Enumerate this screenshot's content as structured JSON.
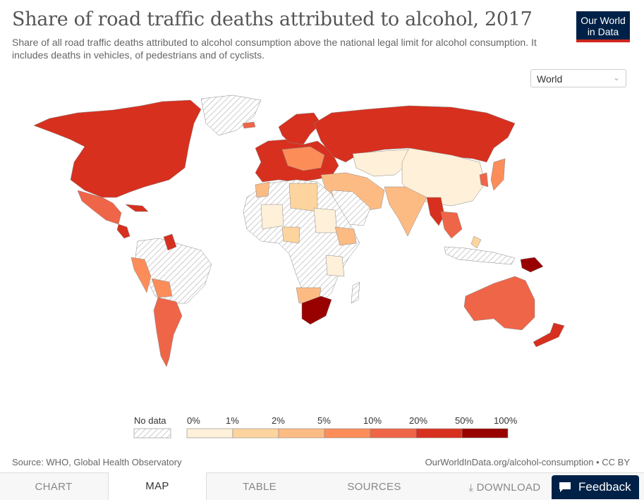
{
  "header": {
    "title": "Share of road traffic deaths attributed to alcohol, 2017",
    "subtitle": "Share of all road traffic deaths attributed to alcohol consumption above the national legal limit for alcohol consumption. It includes deaths in vehicles, of pedestrians and of cyclists.",
    "logo_line1": "Our World",
    "logo_line2": "in Data"
  },
  "region_select": {
    "value": "World"
  },
  "legend": {
    "no_data_label": "No data",
    "ticks": [
      "0%",
      "1%",
      "2%",
      "5%",
      "10%",
      "20%",
      "50%",
      "100%"
    ],
    "colors": [
      "#fef0d9",
      "#fdd49e",
      "#fdbb84",
      "#fc8d59",
      "#ef6548",
      "#d7301f",
      "#990000"
    ]
  },
  "footer": {
    "source": "Source: WHO, Global Health Observatory",
    "url": "OurWorldInData.org/alcohol-consumption • CC BY"
  },
  "tabs": [
    {
      "label": "CHART"
    },
    {
      "label": "MAP"
    },
    {
      "label": "TABLE"
    },
    {
      "label": "SOURCES"
    },
    {
      "label": "DOWNLOAD"
    }
  ],
  "feedback": {
    "label": "Feedback"
  }
}
